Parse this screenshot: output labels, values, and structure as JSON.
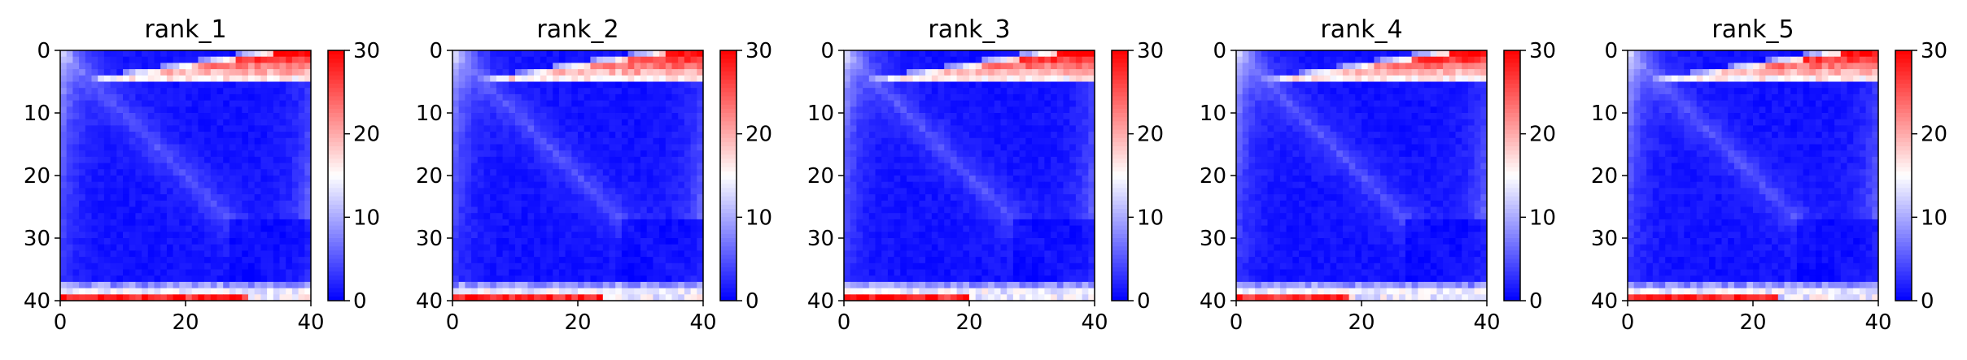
{
  "figure": {
    "colormap": "bwr",
    "colors": {
      "low": "#0000ff",
      "mid": "#ffffff",
      "high": "#ff0000"
    }
  },
  "chart_data": [
    {
      "type": "heatmap",
      "title": "rank_1",
      "xlabel": "",
      "ylabel": "",
      "xlim": [
        0,
        40
      ],
      "ylim": [
        40,
        0
      ],
      "x_ticks": [
        "0",
        "20",
        "40"
      ],
      "y_ticks": [
        "0",
        "10",
        "20",
        "30",
        "40"
      ],
      "colorbar": {
        "range": [
          0,
          30
        ],
        "ticks": [
          "0",
          "10",
          "20",
          "30"
        ]
      },
      "grid_size": [
        40,
        40
      ],
      "value_model": {
        "background": 1,
        "diagonal_lighter": 4,
        "bottom_right_corner": 0,
        "top_rows_red": 30,
        "bottom_rows_red": 28,
        "bottom_rows_white_x_from": 30
      }
    },
    {
      "type": "heatmap",
      "title": "rank_2",
      "xlabel": "",
      "ylabel": "",
      "xlim": [
        0,
        40
      ],
      "ylim": [
        40,
        0
      ],
      "x_ticks": [
        "0",
        "20",
        "40"
      ],
      "y_ticks": [
        "0",
        "10",
        "20",
        "30",
        "40"
      ],
      "colorbar": {
        "range": [
          0,
          30
        ],
        "ticks": [
          "0",
          "10",
          "20",
          "30"
        ]
      },
      "grid_size": [
        40,
        40
      ],
      "value_model": {
        "background": 1,
        "diagonal_lighter": 4,
        "bottom_right_corner": 0,
        "top_rows_red": 30,
        "bottom_rows_red": 28,
        "bottom_rows_white_x_from": 24
      }
    },
    {
      "type": "heatmap",
      "title": "rank_3",
      "xlabel": "",
      "ylabel": "",
      "xlim": [
        0,
        40
      ],
      "ylim": [
        40,
        0
      ],
      "x_ticks": [
        "0",
        "20",
        "40"
      ],
      "y_ticks": [
        "0",
        "10",
        "20",
        "30",
        "40"
      ],
      "colorbar": {
        "range": [
          0,
          30
        ],
        "ticks": [
          "0",
          "10",
          "20",
          "30"
        ]
      },
      "grid_size": [
        40,
        40
      ],
      "value_model": {
        "background": 1,
        "diagonal_lighter": 4,
        "bottom_right_corner": 0,
        "top_rows_red": 30,
        "bottom_rows_red": 28,
        "bottom_rows_white_x_from": 20
      }
    },
    {
      "type": "heatmap",
      "title": "rank_4",
      "xlabel": "",
      "ylabel": "",
      "xlim": [
        0,
        40
      ],
      "ylim": [
        40,
        0
      ],
      "x_ticks": [
        "0",
        "20",
        "40"
      ],
      "y_ticks": [
        "0",
        "10",
        "20",
        "30",
        "40"
      ],
      "colorbar": {
        "range": [
          0,
          30
        ],
        "ticks": [
          "0",
          "10",
          "20",
          "30"
        ]
      },
      "grid_size": [
        40,
        40
      ],
      "value_model": {
        "background": 1,
        "diagonal_lighter": 4,
        "bottom_right_corner": 0,
        "top_rows_red": 30,
        "bottom_rows_red": 28,
        "bottom_rows_white_x_from": 18
      }
    },
    {
      "type": "heatmap",
      "title": "rank_5",
      "xlabel": "",
      "ylabel": "",
      "xlim": [
        0,
        40
      ],
      "ylim": [
        40,
        0
      ],
      "x_ticks": [
        "0",
        "20",
        "40"
      ],
      "y_ticks": [
        "0",
        "10",
        "20",
        "30",
        "40"
      ],
      "colorbar": {
        "range": [
          0,
          30
        ],
        "ticks": [
          "0",
          "10",
          "20",
          "30"
        ]
      },
      "grid_size": [
        40,
        40
      ],
      "value_model": {
        "background": 1,
        "diagonal_lighter": 4,
        "bottom_right_corner": 0,
        "top_rows_red": 30,
        "bottom_rows_red": 28,
        "bottom_rows_white_x_from": 24
      }
    }
  ]
}
